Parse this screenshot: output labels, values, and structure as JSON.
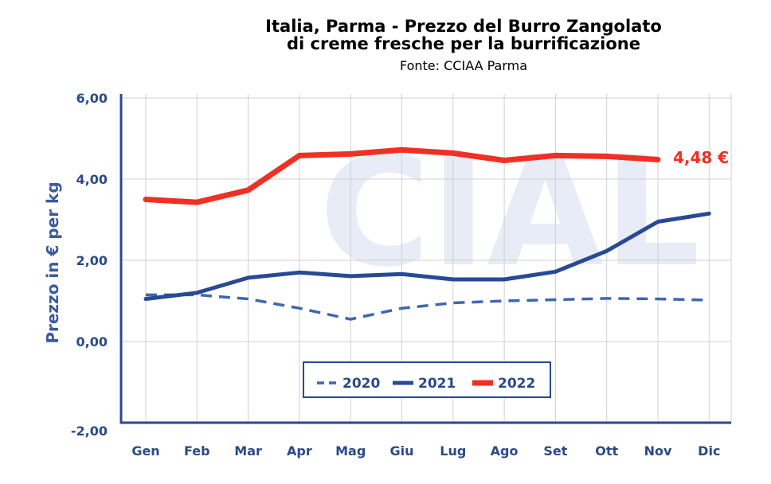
{
  "chart_data": {
    "type": "line",
    "title_line1": "Italia, Parma - Prezzo del Burro Zangolato",
    "title_line2": "di creme fresche per la burrificazione",
    "subtitle": "Fonte: CCIAA Parma",
    "ylabel": "Prezzo in € per kg",
    "xlabel": "",
    "categories": [
      "Gen",
      "Feb",
      "Mar",
      "Apr",
      "Mag",
      "Giu",
      "Lug",
      "Ago",
      "Set",
      "Ott",
      "Nov",
      "Dic"
    ],
    "ylim": [
      -2,
      6
    ],
    "yticks": [
      {
        "value": 6,
        "label": "6,00"
      },
      {
        "value": 4,
        "label": "4,00"
      },
      {
        "value": 2,
        "label": "2,00"
      },
      {
        "value": 0,
        "label": "0,00"
      },
      {
        "value": -2,
        "label": "-2,00"
      }
    ],
    "grid": true,
    "legend_position": "bottom-center",
    "watermark": "CIAL",
    "series": [
      {
        "name": "2020",
        "color": "#3f66b0",
        "style": "dashed",
        "values": [
          1.15,
          1.15,
          1.05,
          0.82,
          0.55,
          0.82,
          0.95,
          1.0,
          1.03,
          1.06,
          1.05,
          1.02
        ]
      },
      {
        "name": "2021",
        "color": "#284a94",
        "style": "solid",
        "values": [
          1.05,
          1.2,
          1.57,
          1.7,
          1.61,
          1.66,
          1.53,
          1.53,
          1.72,
          2.23,
          2.95,
          3.15
        ]
      },
      {
        "name": "2022",
        "color": "#ee3124",
        "style": "solid",
        "values": [
          3.5,
          3.43,
          3.73,
          4.58,
          4.62,
          4.72,
          4.64,
          4.46,
          4.58,
          4.56,
          4.48,
          null
        ]
      }
    ],
    "annotation": {
      "text": "4,48 €",
      "series": "2022",
      "color": "#ee3124"
    }
  }
}
